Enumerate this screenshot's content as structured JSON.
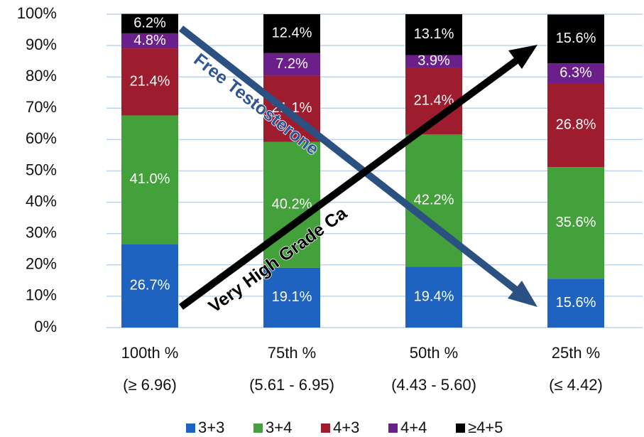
{
  "chart_data": {
    "type": "stacked_bar",
    "categories": [
      "100th %\n(≥ 6.96)",
      "75th %\n(5.61 - 6.95)",
      "50th %\n(4.43 - 5.60)",
      "25th %\n(≤ 4.42)"
    ],
    "series": [
      {
        "name": "3+3",
        "color": "#1f63c0",
        "values": [
          26.7,
          19.1,
          19.4,
          15.6
        ],
        "value_labels": [
          "26.7%",
          "19.1%",
          "19.4%",
          "15.6%"
        ]
      },
      {
        "name": "3+4",
        "color": "#43a03b",
        "values": [
          41.0,
          40.2,
          42.2,
          35.6
        ],
        "value_labels": [
          "41.0%",
          "40.2%",
          "42.2%",
          "35.6%"
        ]
      },
      {
        "name": "4+3",
        "color": "#9d1d2e",
        "values": [
          21.4,
          21.1,
          21.4,
          26.8
        ],
        "value_labels": [
          "21.4%",
          "21.1%",
          "21.4%",
          "26.8%"
        ]
      },
      {
        "name": "4+4",
        "color": "#6b1f8a",
        "values": [
          4.8,
          7.2,
          3.9,
          6.3
        ],
        "value_labels": [
          "4.8%",
          "7.2%",
          "3.9%",
          "6.3%"
        ]
      },
      {
        "name": "≥4+5",
        "color": "#000000",
        "values": [
          6.2,
          12.4,
          13.1,
          15.6
        ],
        "value_labels": [
          "6.2%",
          "12.4%",
          "13.1%",
          "15.6%"
        ]
      }
    ],
    "ylim": [
      0,
      100
    ],
    "yticks": [
      {
        "value": 0,
        "label": "0%"
      },
      {
        "value": 10,
        "label": "10%"
      },
      {
        "value": 20,
        "label": "20%"
      },
      {
        "value": 30,
        "label": "30%"
      },
      {
        "value": 40,
        "label": "40%"
      },
      {
        "value": 50,
        "label": "50%"
      },
      {
        "value": 60,
        "label": "60%"
      },
      {
        "value": 70,
        "label": "70%"
      },
      {
        "value": 80,
        "label": "80%"
      },
      {
        "value": 90,
        "label": "90%"
      },
      {
        "value": 100,
        "label": "100%"
      }
    ],
    "grid": true,
    "legend": "bottom",
    "annotations": [
      "Free Testosterone",
      "Very High Grade Ca"
    ]
  }
}
